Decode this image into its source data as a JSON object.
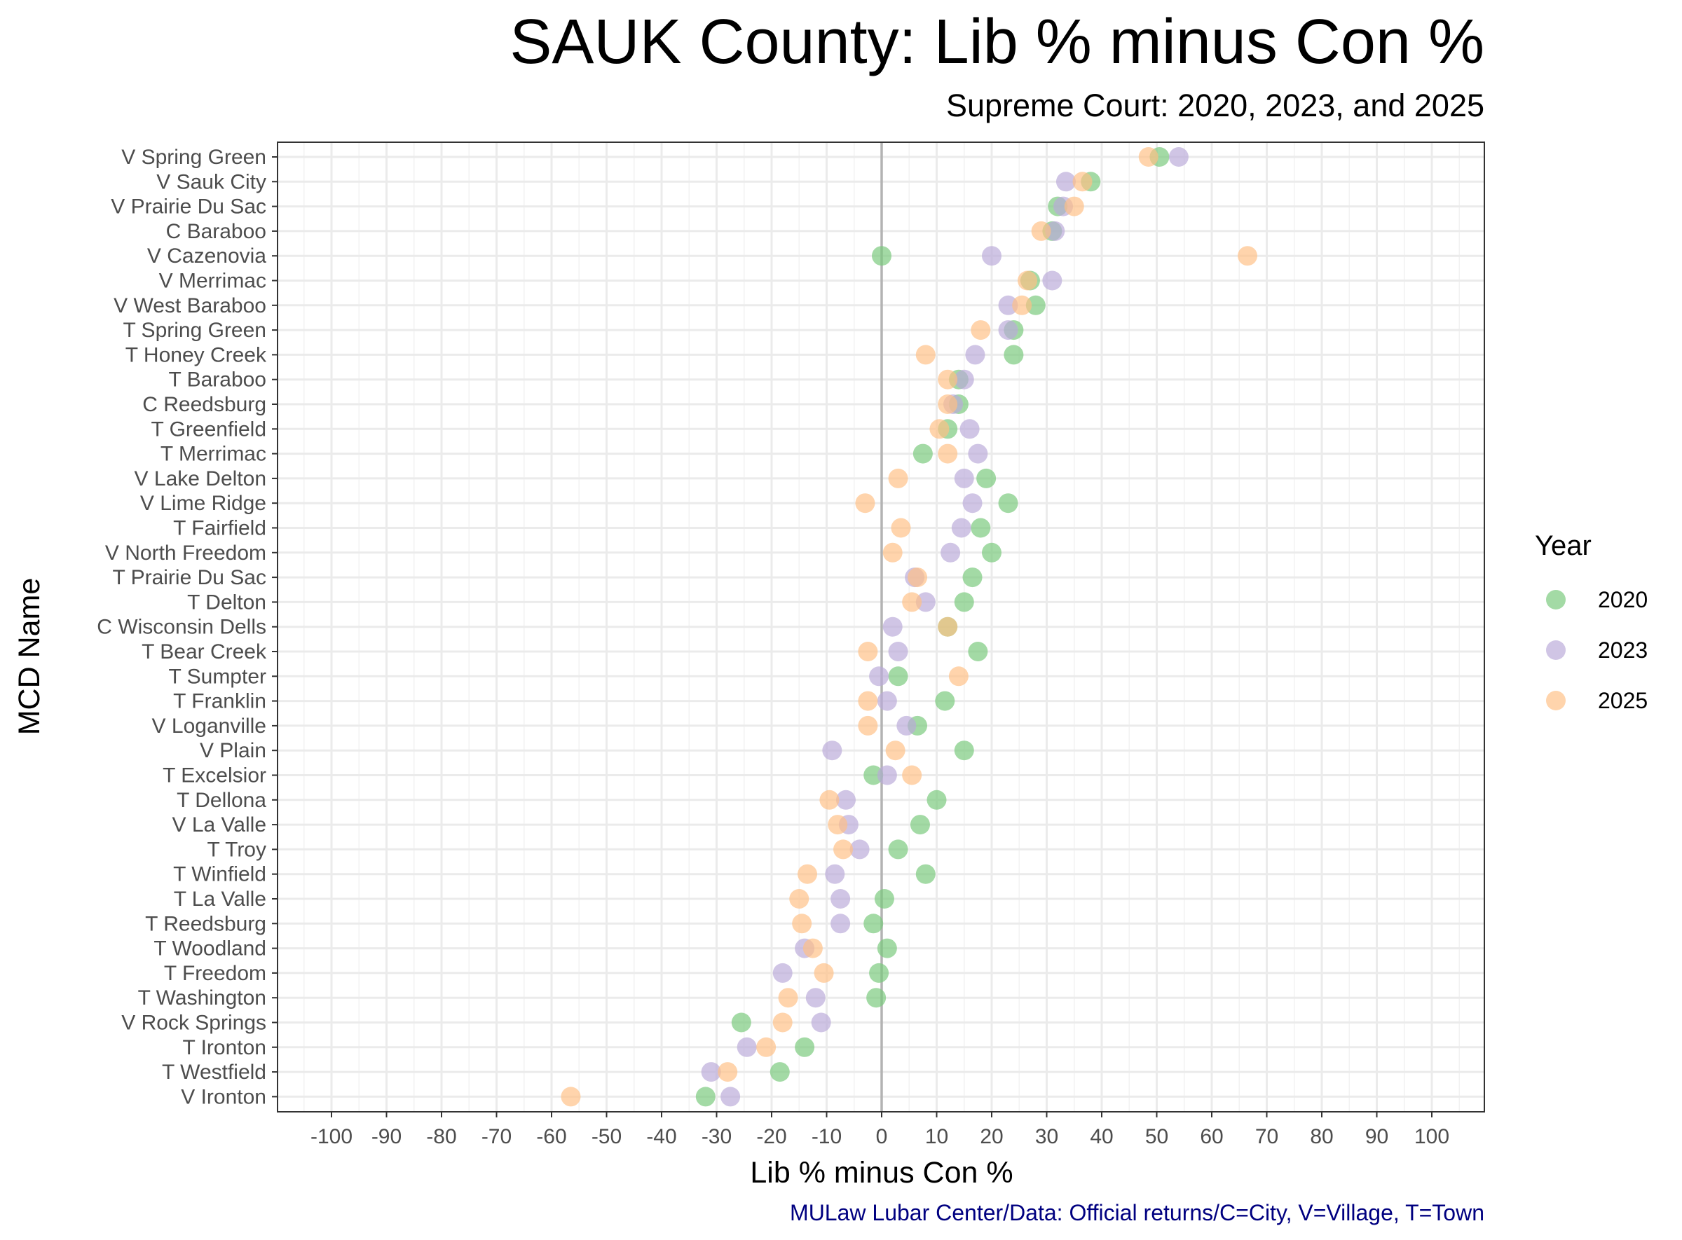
{
  "chart_data": {
    "type": "scatter",
    "title": "SAUK County: Lib % minus Con %",
    "subtitle": "Supreme Court: 2020, 2023, and 2025",
    "xlabel": "Lib % minus Con %",
    "ylabel": "MCD Name",
    "caption": "MULaw Lubar Center/Data: Official returns/C=City, V=Village, T=Town",
    "xlim": [
      -110,
      110
    ],
    "x_ticks": [
      -100,
      -90,
      -80,
      -70,
      -60,
      -50,
      -40,
      -30,
      -20,
      -10,
      0,
      10,
      20,
      30,
      40,
      50,
      60,
      70,
      80,
      90,
      100
    ],
    "grid": true,
    "zero_line": true,
    "legend": {
      "title": "Year",
      "position": "right"
    },
    "categories": [
      "V Spring Green",
      "V Sauk City",
      "V Prairie Du Sac",
      "C Baraboo",
      "V Cazenovia",
      "V Merrimac",
      "V West Baraboo",
      "T Spring Green",
      "T Honey Creek",
      "T Baraboo",
      "C Reedsburg",
      "T Greenfield",
      "T Merrimac",
      "V Lake Delton",
      "V Lime Ridge",
      "T Fairfield",
      "V North Freedom",
      "T Prairie Du Sac",
      "T Delton",
      "C Wisconsin Dells",
      "T Bear Creek",
      "T Sumpter",
      "T Franklin",
      "V Loganville",
      "V Plain",
      "T Excelsior",
      "T Dellona",
      "V La Valle",
      "T Troy",
      "T Winfield",
      "T La Valle",
      "T Reedsburg",
      "T Woodland",
      "T Freedom",
      "T Washington",
      "V Rock Springs",
      "T Ironton",
      "T Westfield",
      "V Ironton"
    ],
    "series": [
      {
        "name": "2020",
        "color": "#77c97a",
        "values": [
          50.5,
          38,
          32,
          31,
          0,
          27,
          28,
          24,
          24,
          14,
          14,
          12,
          7.5,
          19,
          23,
          18,
          20,
          16.5,
          15,
          12,
          17.5,
          3,
          11.5,
          6.5,
          15,
          -1.5,
          10,
          7,
          3,
          8,
          0.5,
          -1.5,
          1,
          -0.5,
          -1,
          -25.5,
          -14,
          -18.5,
          -32
        ]
      },
      {
        "name": "2023",
        "color": "#b9a9d9",
        "values": [
          54,
          33.5,
          33,
          31.5,
          20,
          31,
          23,
          23,
          17,
          15,
          13,
          16,
          17.5,
          15,
          16.5,
          14.5,
          12.5,
          6,
          8,
          2,
          3,
          -0.5,
          1,
          4.5,
          -9,
          1,
          -6.5,
          -6,
          -4,
          -8.5,
          -7.5,
          -7.5,
          -14,
          -18,
          -12,
          -11,
          -24.5,
          -31,
          -27.5
        ]
      },
      {
        "name": "2025",
        "color": "#ffbf85",
        "values": [
          48.5,
          36.5,
          35,
          29,
          66.5,
          26.5,
          25.5,
          18,
          8,
          12,
          12,
          10.5,
          12,
          3,
          -3,
          3.5,
          2,
          6.5,
          5.5,
          12,
          -2.5,
          14,
          -2.5,
          -2.5,
          2.5,
          5.5,
          -9.5,
          -8,
          -7,
          -13.5,
          -15,
          -14.5,
          -12.5,
          -10.5,
          -17,
          -18,
          -21,
          -28,
          -56.5
        ]
      }
    ]
  }
}
